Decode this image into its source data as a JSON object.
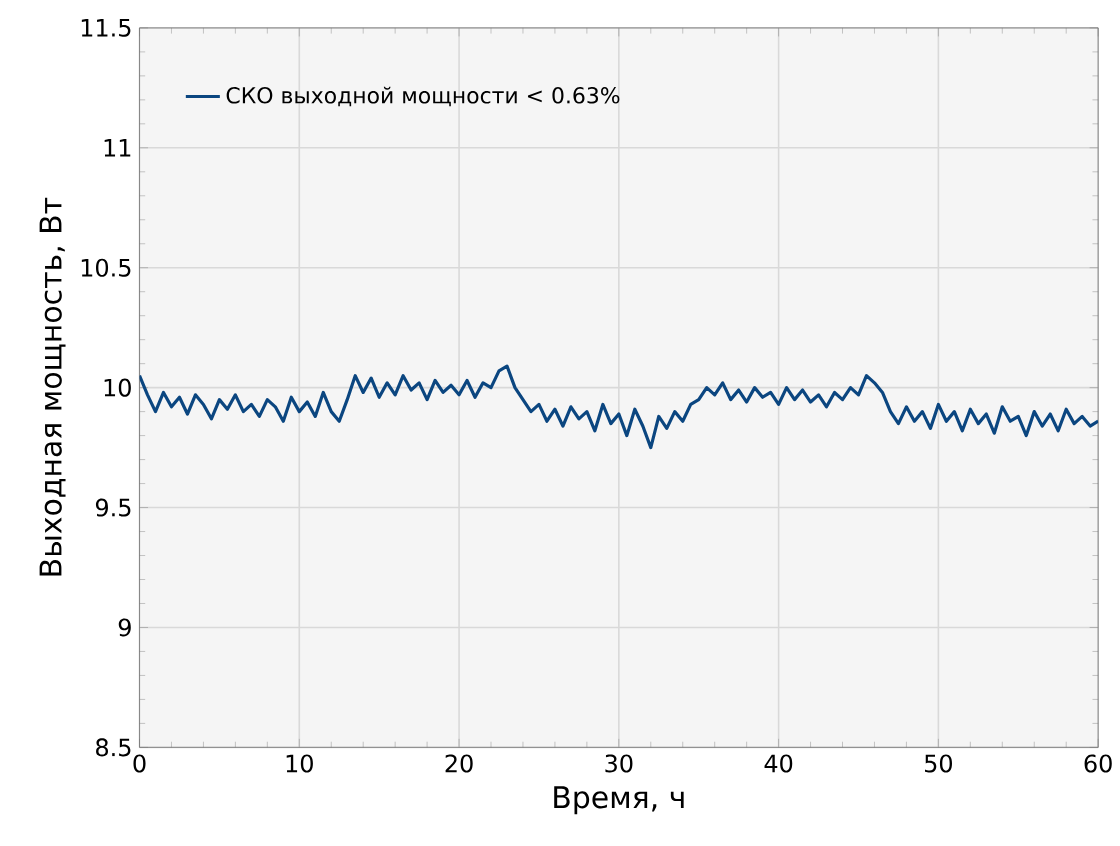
{
  "chart_data": {
    "type": "line",
    "xlabel": "Время, ч",
    "ylabel": "Выходная мощность, Вт",
    "legend": "top left",
    "grid": true,
    "xlim": [
      0,
      60
    ],
    "ylim": [
      8.5,
      11.5
    ],
    "xticks": [
      0,
      10,
      20,
      30,
      40,
      50,
      60
    ],
    "yticks": [
      8.5,
      9,
      9.5,
      10,
      10.5,
      11,
      11.5
    ],
    "series": [
      {
        "name": "СКО выходной мощности < 0.63%",
        "color": "#0b4680",
        "x": [
          0,
          0.5,
          1,
          1.5,
          2,
          2.5,
          3,
          3.5,
          4,
          4.5,
          5,
          5.5,
          6,
          6.5,
          7,
          7.5,
          8,
          8.5,
          9,
          9.5,
          10,
          10.5,
          11,
          11.5,
          12,
          12.5,
          13,
          13.5,
          14,
          14.5,
          15,
          15.5,
          16,
          16.5,
          17,
          17.5,
          18,
          18.5,
          19,
          19.5,
          20,
          20.5,
          21,
          21.5,
          22,
          22.5,
          23,
          23.5,
          24,
          24.5,
          25,
          25.5,
          26,
          26.5,
          27,
          27.5,
          28,
          28.5,
          29,
          29.5,
          30,
          30.5,
          31,
          31.5,
          32,
          32.5,
          33,
          33.5,
          34,
          34.5,
          35,
          35.5,
          36,
          36.5,
          37,
          37.5,
          38,
          38.5,
          39,
          39.5,
          40,
          40.5,
          41,
          41.5,
          42,
          42.5,
          43,
          43.5,
          44,
          44.5,
          45,
          45.5,
          46,
          46.5,
          47,
          47.5,
          48,
          48.5,
          49,
          49.5,
          50,
          50.5,
          51,
          51.5,
          52,
          52.5,
          53,
          53.5,
          54,
          54.5,
          55,
          55.5,
          56,
          56.5,
          57,
          57.5,
          58,
          58.5,
          59,
          59.5,
          60
        ],
        "values": [
          10.05,
          9.97,
          9.9,
          9.98,
          9.92,
          9.96,
          9.89,
          9.97,
          9.93,
          9.87,
          9.95,
          9.91,
          9.97,
          9.9,
          9.93,
          9.88,
          9.95,
          9.92,
          9.86,
          9.96,
          9.9,
          9.94,
          9.88,
          9.98,
          9.9,
          9.86,
          9.95,
          10.05,
          9.98,
          10.04,
          9.96,
          10.02,
          9.97,
          10.05,
          9.99,
          10.02,
          9.95,
          10.03,
          9.98,
          10.01,
          9.97,
          10.03,
          9.96,
          10.02,
          10.0,
          10.07,
          10.09,
          10.0,
          9.95,
          9.9,
          9.93,
          9.86,
          9.91,
          9.84,
          9.92,
          9.87,
          9.9,
          9.82,
          9.93,
          9.85,
          9.89,
          9.8,
          9.91,
          9.84,
          9.75,
          9.88,
          9.83,
          9.9,
          9.86,
          9.93,
          9.95,
          10.0,
          9.97,
          10.02,
          9.95,
          9.99,
          9.94,
          10.0,
          9.96,
          9.98,
          9.93,
          10.0,
          9.95,
          9.99,
          9.94,
          9.97,
          9.92,
          9.98,
          9.95,
          10.0,
          9.97,
          10.05,
          10.02,
          9.98,
          9.9,
          9.85,
          9.92,
          9.86,
          9.9,
          9.83,
          9.93,
          9.86,
          9.9,
          9.82,
          9.91,
          9.85,
          9.89,
          9.81,
          9.92,
          9.86,
          9.88,
          9.8,
          9.9,
          9.84,
          9.89,
          9.82,
          9.91,
          9.85,
          9.88,
          9.84,
          9.86
        ]
      }
    ]
  }
}
